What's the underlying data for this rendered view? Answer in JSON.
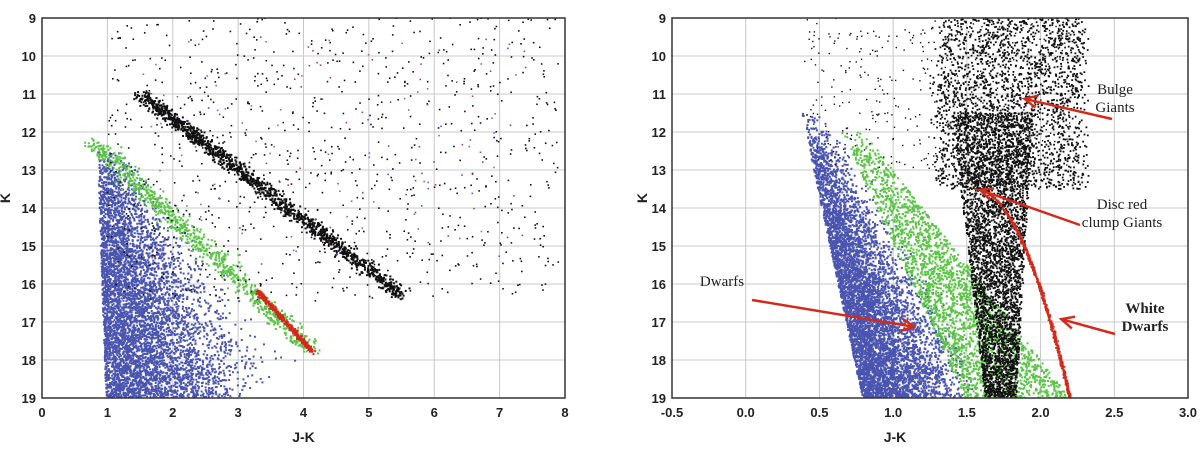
{
  "chart_data": [
    {
      "type": "scatter",
      "title": "",
      "xlabel": "J-K",
      "ylabel": "K",
      "xlim": [
        0,
        8
      ],
      "ylim": [
        19,
        9
      ],
      "x_ticks": [
        "0",
        "1",
        "2",
        "3",
        "4",
        "5",
        "6",
        "7",
        "8"
      ],
      "y_ticks": [
        "9",
        "10",
        "11",
        "12",
        "13",
        "14",
        "15",
        "16",
        "17",
        "18",
        "19"
      ],
      "grid": true,
      "colors": {
        "dwarfs": "#4a55b0",
        "green": "#5cc447",
        "giants": "#111111",
        "red": "#d32a1c"
      },
      "series": [
        {
          "color": "#4a55b0",
          "region": "dense lower-left fan",
          "points": [
            [
              1.0,
              19.0
            ],
            [
              1.1,
              16.0
            ],
            [
              1.5,
              18.5
            ],
            [
              2.5,
              18.5
            ],
            [
              3.0,
              19.0
            ],
            [
              4.1,
              17.8
            ]
          ]
        },
        {
          "color": "#5cc447",
          "region": "upper envelope of dwarf fan",
          "points": [
            [
              0.8,
              12.5
            ],
            [
              1.5,
              14.0
            ],
            [
              2.5,
              15.5
            ],
            [
              3.5,
              16.8
            ],
            [
              4.1,
              17.8
            ]
          ]
        },
        {
          "color": "#d32a1c",
          "region": "narrow diagonal band",
          "points": [
            [
              3.3,
              16.2
            ],
            [
              4.1,
              17.8
            ]
          ]
        },
        {
          "color": "#111111",
          "region": "diagonal giant sequence",
          "points": [
            [
              1.5,
              11.0
            ],
            [
              3.0,
              12.8
            ],
            [
              4.5,
              14.8
            ],
            [
              5.5,
              16.3
            ]
          ]
        }
      ]
    },
    {
      "type": "scatter",
      "title": "",
      "xlabel": "J-K",
      "ylabel": "K",
      "xlim": [
        -0.5,
        3.0
      ],
      "ylim": [
        19,
        9
      ],
      "x_ticks": [
        "-0.5",
        "0.0",
        "0.5",
        "1.0",
        "1.5",
        "2.0",
        "2.5",
        "3.0"
      ],
      "y_ticks": [
        "9",
        "10",
        "11",
        "12",
        "13",
        "14",
        "15",
        "16",
        "17",
        "18",
        "19"
      ],
      "grid": true,
      "colors": {
        "dwarfs": "#4a55b0",
        "green": "#5cc447",
        "giants": "#111111",
        "red": "#d32a1c"
      },
      "series": [
        {
          "color": "#4a55b0",
          "region": "dwarf fan",
          "points": [
            [
              0.4,
              11.5
            ],
            [
              0.8,
              14.5
            ],
            [
              1.0,
              17.0
            ],
            [
              1.5,
              18.8
            ]
          ]
        },
        {
          "color": "#5cc447",
          "region": "dwarf upper envelope",
          "points": [
            [
              0.7,
              12.0
            ],
            [
              1.1,
              15.5
            ],
            [
              1.5,
              17.5
            ],
            [
              1.65,
              19.0
            ]
          ]
        },
        {
          "color": "#111111",
          "region": "giant branch",
          "points": [
            [
              1.4,
              11.5
            ],
            [
              1.5,
              13.0
            ],
            [
              1.6,
              15.0
            ],
            [
              1.7,
              17.0
            ],
            [
              1.7,
              19.0
            ]
          ]
        },
        {
          "color": "#d32a1c",
          "region": "white dwarf track",
          "points": [
            [
              1.55,
              13.5
            ],
            [
              1.8,
              14.8
            ],
            [
              2.0,
              16.0
            ],
            [
              2.15,
              17.2
            ],
            [
              2.2,
              19.0
            ]
          ]
        }
      ],
      "annotations": [
        {
          "lines": [
            "Bulge",
            "Giants"
          ],
          "target": [
            1.85,
            11.1
          ]
        },
        {
          "lines": [
            "Disc red",
            "clump Giants"
          ],
          "target": [
            1.55,
            13.5
          ]
        },
        {
          "lines": [
            "Dwarfs"
          ],
          "target": [
            1.1,
            17.1
          ]
        },
        {
          "lines": [
            "White",
            "Dwarfs"
          ],
          "target": [
            2.1,
            16.9
          ]
        }
      ]
    }
  ]
}
